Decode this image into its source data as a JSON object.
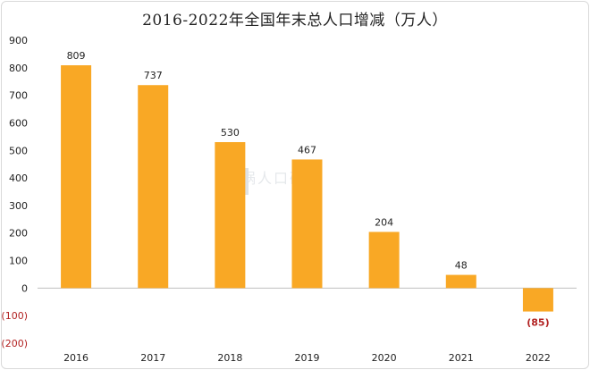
{
  "watermark": "育娲人口研究",
  "chart_data": {
    "type": "bar",
    "title": "2016-2022年全国年末总人口增减（万人）",
    "categories": [
      "2016",
      "2017",
      "2018",
      "2019",
      "2020",
      "2021",
      "2022"
    ],
    "values": [
      809,
      737,
      530,
      467,
      204,
      48,
      -85
    ],
    "data_labels": [
      "809",
      "737",
      "530",
      "467",
      "204",
      "48",
      "(85)"
    ],
    "yticks": [
      900,
      800,
      700,
      600,
      500,
      400,
      300,
      200,
      100,
      0,
      -100,
      -200
    ],
    "ytick_labels": [
      "900",
      "800",
      "700",
      "600",
      "500",
      "400",
      "300",
      "200",
      "100",
      "0",
      "(100)",
      "(200)"
    ],
    "ylim": [
      -200,
      900
    ],
    "xlabel": "",
    "ylabel": "",
    "grid": false,
    "bar_color": "#F9A825",
    "negative_label_color": "#B22222"
  }
}
